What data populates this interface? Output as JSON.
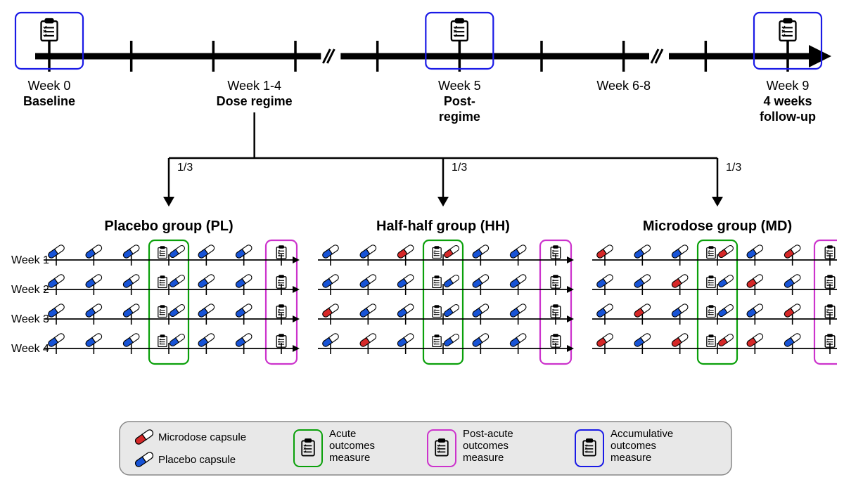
{
  "colors": {
    "black": "#000000",
    "blue_box": "#1a1ae6",
    "green_box": "#0aa00a",
    "magenta_box": "#cc33cc",
    "pill_blue": "#1753d6",
    "pill_red": "#d62828",
    "pill_white": "#ffffff",
    "legend_bg": "#e8e8e8",
    "legend_border": "#888888"
  },
  "timeline": {
    "phases": [
      {
        "week_line": "Week 0",
        "bold_line": "Baseline",
        "has_box": true,
        "box_color": "blue_box"
      },
      {
        "week_line": "Week 1-4",
        "bold_line": "Dose regime",
        "has_box": false
      },
      {
        "week_line": "Week 5",
        "bold_line": "Post-",
        "bold_line2": "regime",
        "has_box": true,
        "box_color": "blue_box"
      },
      {
        "week_line": "Week 6-8",
        "bold_line": "",
        "has_box": false
      },
      {
        "week_line": "Week 9",
        "bold_line": "4 weeks",
        "bold_line2": "follow-up",
        "has_box": true,
        "box_color": "blue_box"
      }
    ],
    "break_after_tick": [
      3,
      7
    ]
  },
  "split_fractions": [
    "1/3",
    "1/3",
    "1/3"
  ],
  "groups": [
    {
      "title": "Placebo group (PL)",
      "weeks": [
        [
          "B",
          "B",
          "B",
          "CB",
          "B",
          "B",
          "C"
        ],
        [
          "B",
          "B",
          "B",
          "CB",
          "B",
          "B",
          "C"
        ],
        [
          "B",
          "B",
          "B",
          "CB",
          "B",
          "B",
          "C"
        ],
        [
          "B",
          "B",
          "B",
          "CB",
          "B",
          "B",
          "C"
        ]
      ]
    },
    {
      "title": "Half-half group (HH)",
      "weeks": [
        [
          "B",
          "B",
          "R",
          "CR",
          "B",
          "B",
          "C"
        ],
        [
          "B",
          "B",
          "B",
          "CB",
          "B",
          "B",
          "C"
        ],
        [
          "R",
          "B",
          "B",
          "CB",
          "B",
          "B",
          "C"
        ],
        [
          "B",
          "R",
          "B",
          "CB",
          "B",
          "B",
          "C"
        ]
      ]
    },
    {
      "title": "Microdose group (MD)",
      "weeks": [
        [
          "R",
          "B",
          "B",
          "CR",
          "B",
          "R",
          "C"
        ],
        [
          "B",
          "B",
          "R",
          "CB",
          "R",
          "B",
          "C"
        ],
        [
          "B",
          "R",
          "B",
          "CB",
          "B",
          "R",
          "C"
        ],
        [
          "R",
          "B",
          "R",
          "CR",
          "R",
          "B",
          "C"
        ]
      ]
    }
  ],
  "week_labels": [
    "Week 1",
    "Week 2",
    "Week 3",
    "Week 4"
  ],
  "legend": {
    "microdose": "Microdose capsule",
    "placebo": "Placebo capsule",
    "acute": "Acute\noutcomes\nmeasure",
    "postacute": "Post-acute\noutcomes\nmeasure",
    "accumulative": "Accumulative\noutcomes\nmeasure"
  }
}
